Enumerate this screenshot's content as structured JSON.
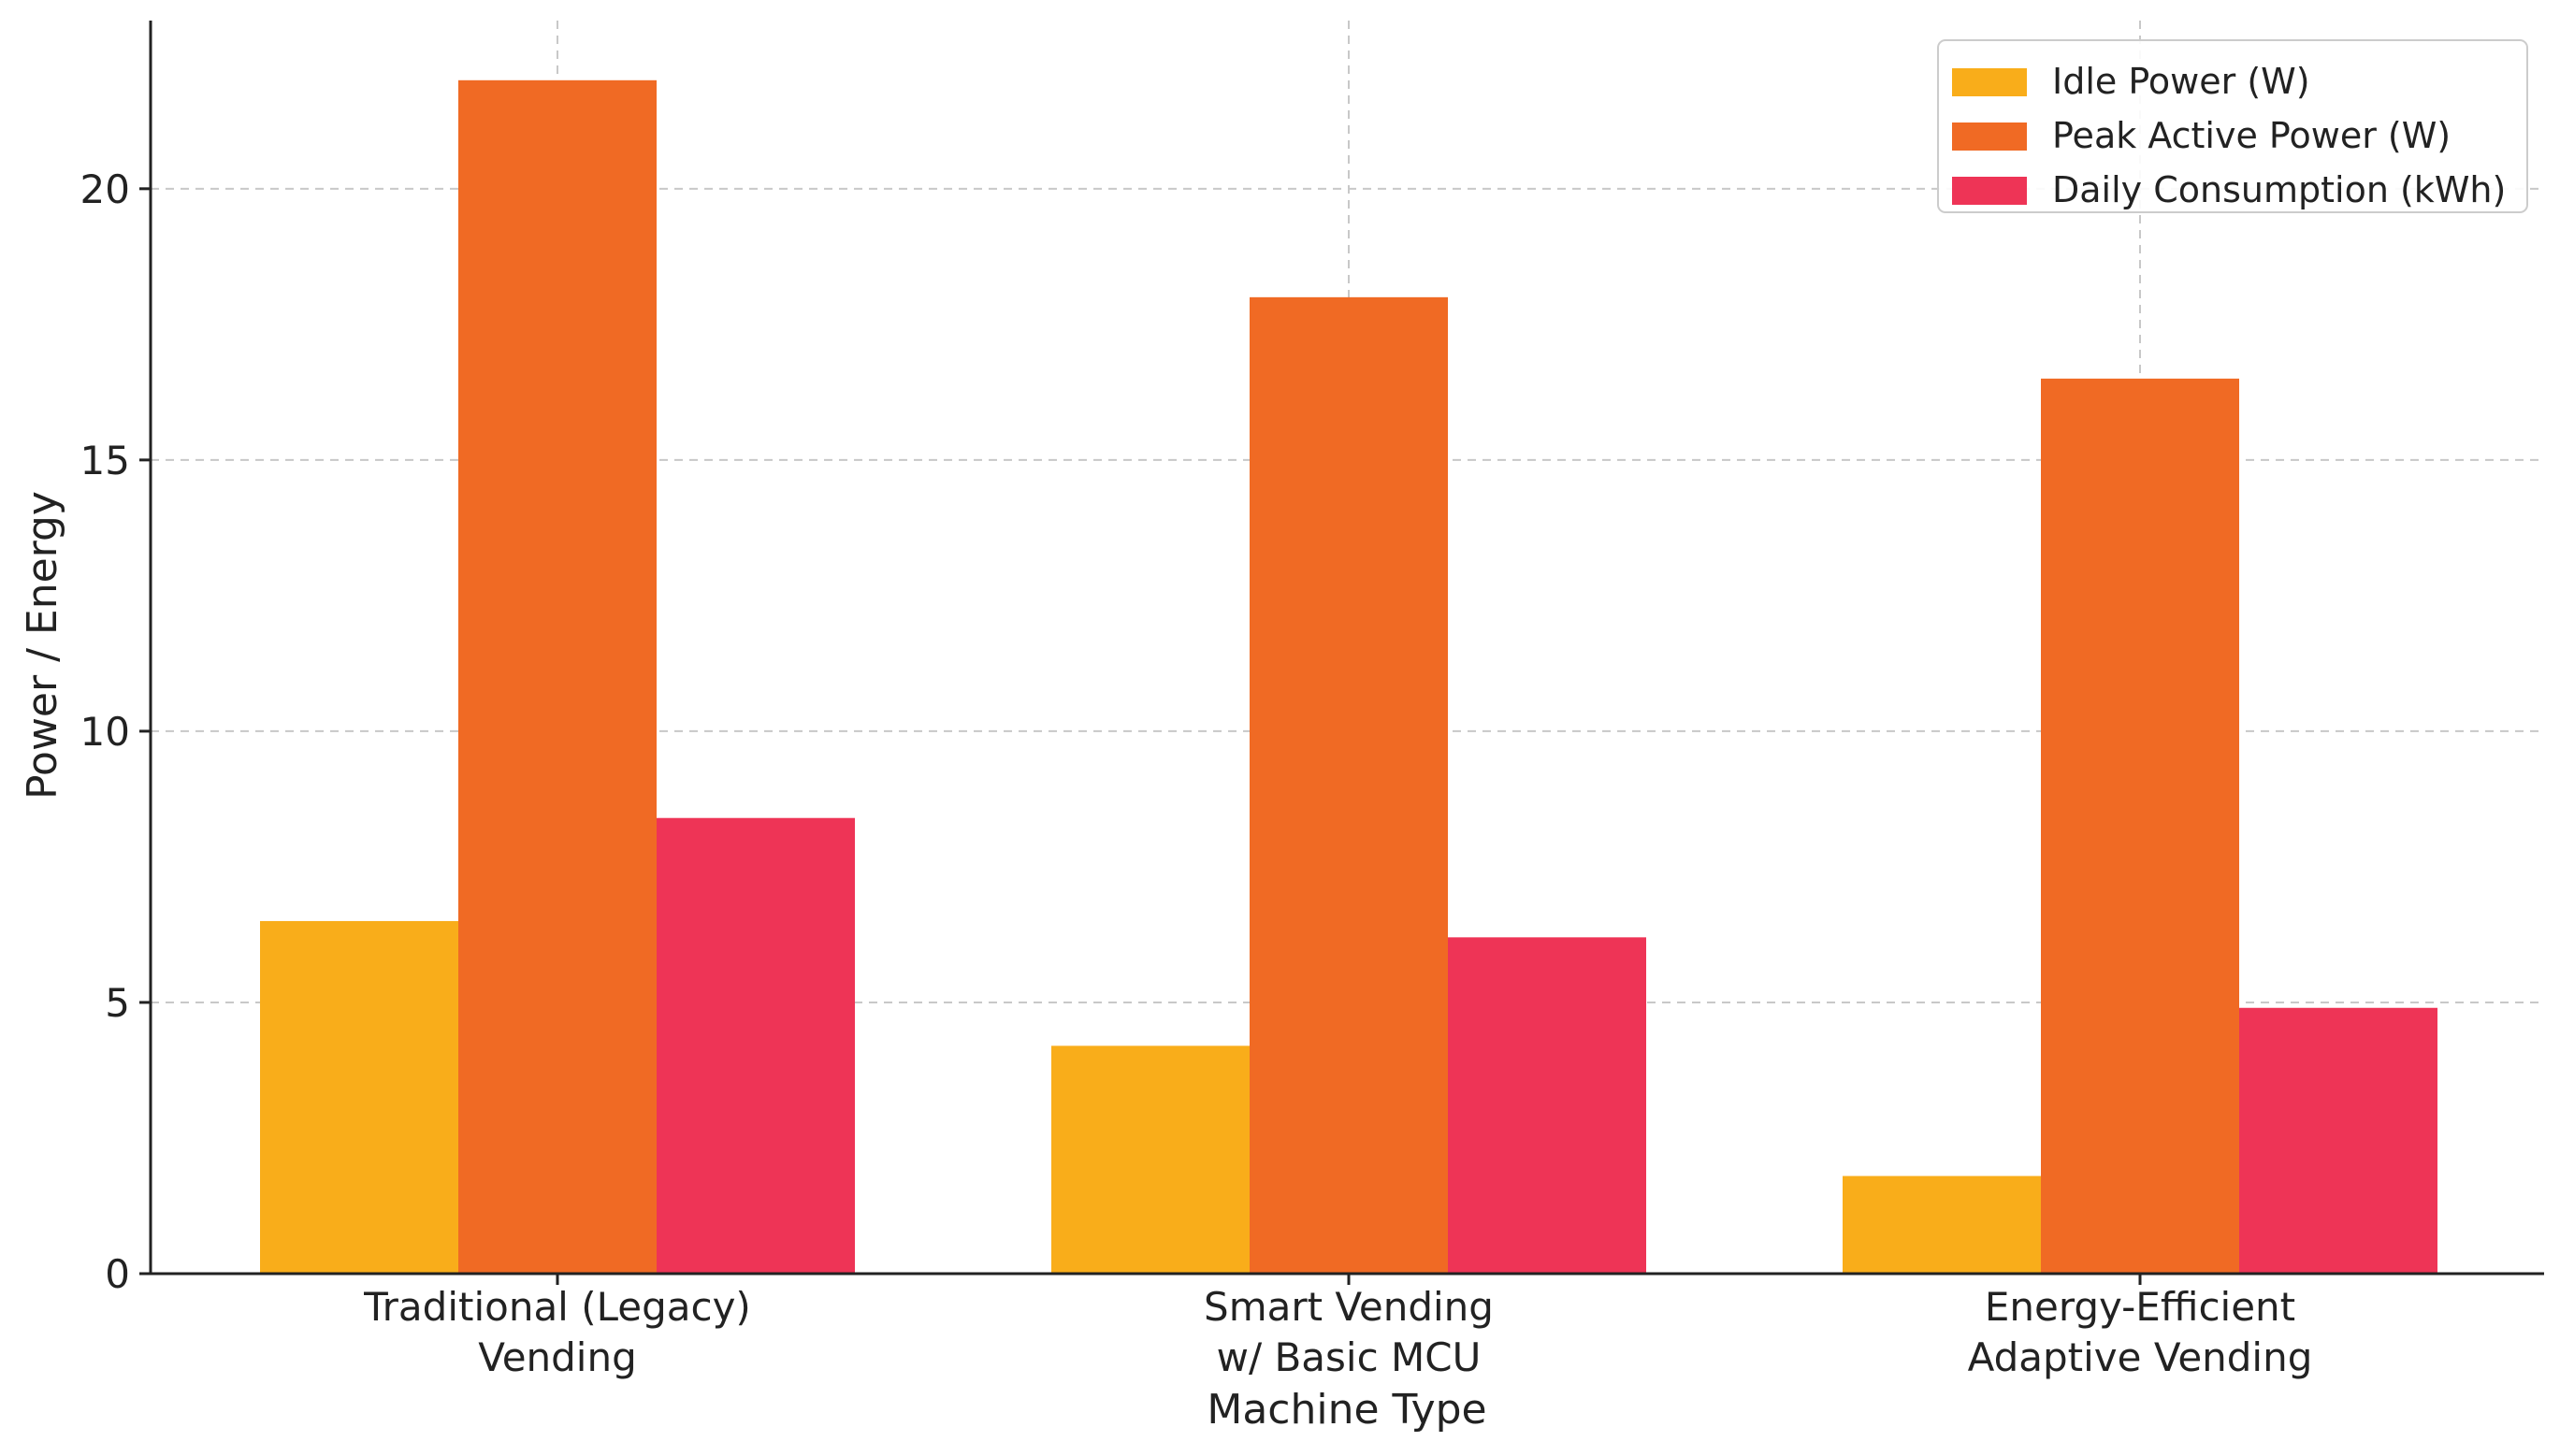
{
  "chart_data": {
    "type": "bar",
    "title": "",
    "xlabel": "Machine Type",
    "ylabel": "Power / Energy",
    "categories": [
      [
        "Traditional (Legacy)",
        "Vending"
      ],
      [
        "Smart Vending",
        "w/ Basic MCU"
      ],
      [
        "Energy-Efficient",
        "Adaptive Vending"
      ]
    ],
    "series": [
      {
        "name": "Idle Power (W)",
        "values": [
          6.5,
          4.2,
          1.8
        ],
        "color": "#F9AD1A"
      },
      {
        "name": "Peak Active Power (W)",
        "values": [
          22,
          18,
          16.5
        ],
        "color": "#F06A24"
      },
      {
        "name": "Daily Consumption (kWh)",
        "values": [
          8.4,
          6.2,
          4.9
        ],
        "color": "#EE3456"
      }
    ],
    "ylim": [
      0,
      23.1
    ],
    "yticks": [
      0,
      5,
      10,
      15,
      20
    ],
    "grid": true,
    "legend_position": "top-right"
  }
}
